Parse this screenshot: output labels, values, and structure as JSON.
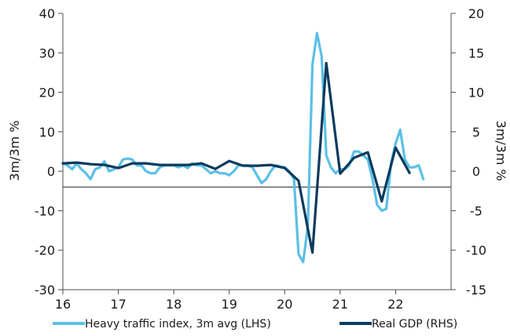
{
  "chart_data": {
    "type": "line",
    "ylabel_left": "3m/3m %",
    "ylabel_right": "3m/3m %",
    "ylim_left": [
      -30,
      40
    ],
    "ylim_right": [
      -15,
      20
    ],
    "yticks_left": [
      40,
      30,
      20,
      10,
      0,
      -10,
      -20,
      -30
    ],
    "yticks_right": [
      20,
      15,
      10,
      5,
      0,
      -5,
      -10,
      -15
    ],
    "xlim": [
      16,
      23
    ],
    "xticks": [
      16,
      17,
      18,
      19,
      20,
      21,
      22
    ],
    "xtick_labels": [
      "16",
      "17",
      "18",
      "19",
      "20",
      "21",
      "22"
    ],
    "grid": false,
    "legend_position": "bottom",
    "series": [
      {
        "name": "Heavy traffic index, 3m avg (LHS)",
        "axis": "left",
        "color": "#5bc0e6",
        "x": [
          16.0,
          16.083,
          16.167,
          16.25,
          16.333,
          16.417,
          16.5,
          16.583,
          16.667,
          16.75,
          16.833,
          16.917,
          17.0,
          17.083,
          17.167,
          17.25,
          17.333,
          17.417,
          17.5,
          17.583,
          17.667,
          17.75,
          17.833,
          17.917,
          18.0,
          18.083,
          18.167,
          18.25,
          18.333,
          18.417,
          18.5,
          18.583,
          18.667,
          18.75,
          18.833,
          18.917,
          19.0,
          19.083,
          19.167,
          19.25,
          19.333,
          19.417,
          19.5,
          19.583,
          19.667,
          19.75,
          19.833,
          19.917,
          20.0,
          20.083,
          20.167,
          20.25,
          20.333,
          20.417,
          20.5,
          20.583,
          20.667,
          20.75,
          20.833,
          20.917,
          21.0,
          21.083,
          21.167,
          21.25,
          21.333,
          21.417,
          21.5,
          21.583,
          21.667,
          21.75,
          21.833,
          21.917,
          22.0,
          22.083,
          22.167,
          22.25,
          22.333,
          22.417,
          22.5
        ],
        "values": [
          2,
          1.5,
          0.5,
          2,
          0.5,
          -0.5,
          -2,
          0.5,
          1,
          2.5,
          0,
          0.5,
          1,
          3,
          3.2,
          3,
          1.5,
          1.5,
          0,
          -0.5,
          -0.5,
          1,
          1.5,
          1.5,
          1.5,
          1,
          1.5,
          0.8,
          2,
          1.5,
          1.5,
          0.5,
          -0.5,
          0,
          -0.5,
          -0.5,
          -1,
          0,
          1.5,
          1.5,
          1.5,
          1,
          -1,
          -3,
          -2,
          0,
          1.5,
          1.2,
          1,
          0,
          -2,
          -21,
          -23,
          -14,
          27,
          35,
          29,
          4,
          1,
          -0.5,
          0.5,
          0.5,
          1.5,
          5,
          5,
          4,
          3,
          -2,
          -8.5,
          -10,
          -9.5,
          2,
          7,
          10.5,
          3,
          1,
          1,
          1.5,
          -2
        ]
      },
      {
        "name": "Real GDP (RHS)",
        "axis": "right",
        "color": "#0b3a5e",
        "x": [
          16.0,
          16.25,
          16.5,
          16.75,
          17.0,
          17.25,
          17.5,
          17.75,
          18.0,
          18.25,
          18.5,
          18.75,
          19.0,
          19.25,
          19.5,
          19.75,
          20.0,
          20.25,
          20.5,
          20.75,
          21.0,
          21.25,
          21.5,
          21.75,
          22.0,
          22.25
        ],
        "values": [
          1,
          1.1,
          0.9,
          0.8,
          0.4,
          1,
          1,
          0.8,
          0.8,
          0.8,
          1,
          0.3,
          1.3,
          0.7,
          0.7,
          0.8,
          0.4,
          -1.2,
          -10.3,
          13.7,
          -0.3,
          1.7,
          2.4,
          -3.8,
          3,
          -0.2
        ]
      }
    ]
  }
}
